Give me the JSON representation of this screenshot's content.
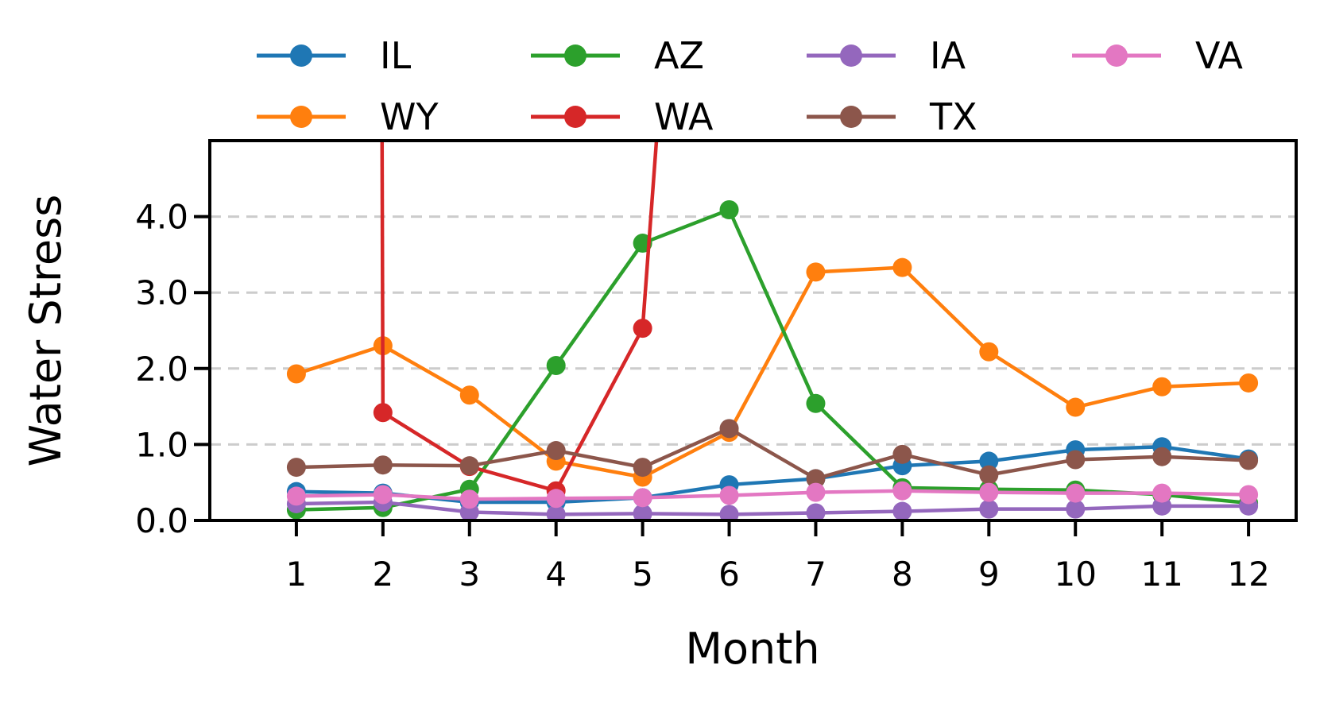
{
  "chart_data": {
    "type": "line",
    "title": "",
    "xlabel": "Month",
    "ylabel": "Water Stress",
    "categories": [
      "1",
      "2",
      "3",
      "4",
      "5",
      "6",
      "7",
      "8",
      "9",
      "10",
      "11",
      "12"
    ],
    "x": [
      1,
      2,
      3,
      4,
      5,
      6,
      7,
      8,
      9,
      10,
      11,
      12
    ],
    "xlim": [
      0.0,
      12.55
    ],
    "ylim": [
      0.0,
      5.0
    ],
    "yticks": [
      0.0,
      1.0,
      2.0,
      3.0,
      4.0
    ],
    "ytick_labels": [
      "0.0",
      "1.0",
      "2.0",
      "3.0",
      "4.0"
    ],
    "grid": "horizontal dashed at y ticks",
    "legend": {
      "placement": "top, outside plot",
      "columns": 4
    },
    "series": [
      {
        "name": "IL",
        "color": "#1f77b4",
        "values": [
          0.38,
          0.36,
          0.24,
          0.24,
          0.3,
          0.47,
          0.55,
          0.72,
          0.78,
          0.93,
          0.97,
          0.81
        ]
      },
      {
        "name": "WY",
        "color": "#ff7f0e",
        "values": [
          1.93,
          2.3,
          1.65,
          0.78,
          0.57,
          1.16,
          3.27,
          3.33,
          2.22,
          1.49,
          1.76,
          1.81
        ]
      },
      {
        "name": "AZ",
        "color": "#2ca02c",
        "values": [
          0.14,
          0.17,
          0.41,
          2.04,
          3.65,
          4.09,
          1.54,
          0.43,
          0.41,
          0.4,
          0.34,
          0.23
        ]
      },
      {
        "name": "WA",
        "color": "#d62728",
        "values": [
          null,
          1.42,
          0.71,
          0.39,
          2.53,
          null,
          null,
          null,
          null,
          null,
          null,
          null
        ],
        "offscale": [
          {
            "from_x": 1.99,
            "from_y": 5.0,
            "to_x": 2.0,
            "to_y": 1.42
          },
          {
            "from_x": 5.0,
            "from_y": 2.53,
            "to_x": 5.16,
            "to_y": 5.0
          }
        ]
      },
      {
        "name": "IA",
        "color": "#9467bd",
        "values": [
          0.22,
          0.24,
          0.11,
          0.08,
          0.09,
          0.08,
          0.1,
          0.12,
          0.15,
          0.15,
          0.19,
          0.19
        ]
      },
      {
        "name": "TX",
        "color": "#8c564b",
        "values": [
          0.7,
          0.73,
          0.72,
          0.92,
          0.7,
          1.21,
          0.55,
          0.87,
          0.6,
          0.8,
          0.84,
          0.79
        ]
      },
      {
        "name": "VA",
        "color": "#e377c2",
        "values": [
          0.32,
          0.34,
          0.28,
          0.29,
          0.3,
          0.33,
          0.37,
          0.39,
          0.37,
          0.36,
          0.36,
          0.34
        ]
      }
    ]
  }
}
